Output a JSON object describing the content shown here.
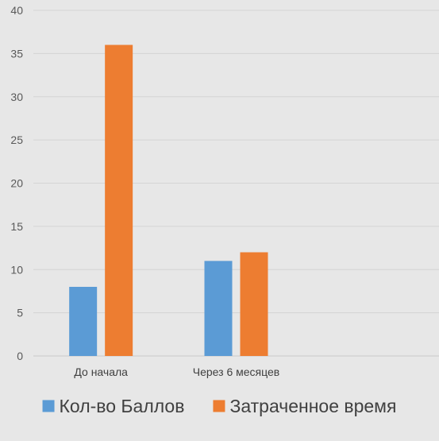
{
  "chart_data": {
    "type": "bar",
    "categories": [
      "До начала",
      "Через 6 месяцев",
      ""
    ],
    "series": [
      {
        "name": "Кол-во Баллов",
        "values": [
          8,
          11,
          null
        ],
        "color": "#5b9bd5"
      },
      {
        "name": "Затраченное время",
        "values": [
          36,
          12,
          null
        ],
        "color": "#ed7d31"
      }
    ],
    "title": "",
    "xlabel": "",
    "ylabel": "",
    "ylim": [
      0,
      40
    ],
    "yticks": [
      0,
      5,
      10,
      15,
      20,
      25,
      30,
      35,
      40
    ],
    "grid": true,
    "legend_position": "bottom"
  }
}
